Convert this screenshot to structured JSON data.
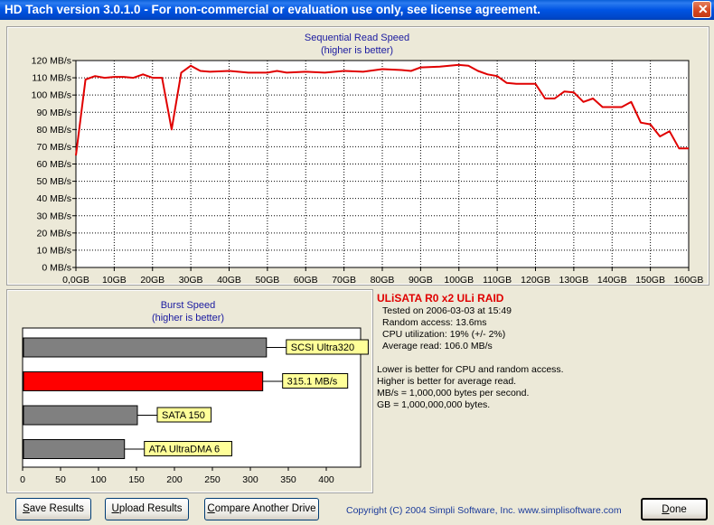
{
  "window": {
    "title": "HD Tach version 3.0.1.0  - For non-commercial or evaluation use only, see license agreement.",
    "close_glyph": "✕"
  },
  "chart_data": [
    {
      "type": "line",
      "title": "Sequential Read Speed",
      "subtitle": "(higher is better)",
      "xlabel": "",
      "ylabel": "",
      "x_ticks": [
        "0,0GB",
        "10GB",
        "20GB",
        "30GB",
        "40GB",
        "50GB",
        "60GB",
        "70GB",
        "80GB",
        "90GB",
        "100GB",
        "110GB",
        "120GB",
        "130GB",
        "140GB",
        "150GB",
        "160GB"
      ],
      "y_ticks": [
        "0 MB/s",
        "10 MB/s",
        "20 MB/s",
        "30 MB/s",
        "40 MB/s",
        "50 MB/s",
        "60 MB/s",
        "70 MB/s",
        "80 MB/s",
        "90 MB/s",
        "100 MB/s",
        "110 MB/s",
        "120 MB/s"
      ],
      "xlim": [
        0,
        160
      ],
      "ylim": [
        0,
        120
      ],
      "grid": true,
      "series": [
        {
          "color": "#e00000",
          "points": [
            [
              0,
              65
            ],
            [
              2.5,
              109
            ],
            [
              5,
              111
            ],
            [
              7.5,
              110
            ],
            [
              10,
              110.5
            ],
            [
              12.5,
              110.5
            ],
            [
              15,
              110
            ],
            [
              17.5,
              112
            ],
            [
              20,
              110
            ],
            [
              22.5,
              110
            ],
            [
              25,
              80
            ],
            [
              27.5,
              113
            ],
            [
              30,
              117
            ],
            [
              32.5,
              114
            ],
            [
              35,
              113.5
            ],
            [
              40,
              114
            ],
            [
              45,
              113
            ],
            [
              50,
              113
            ],
            [
              52.5,
              114
            ],
            [
              55,
              113
            ],
            [
              60,
              113.5
            ],
            [
              65,
              113
            ],
            [
              70,
              114
            ],
            [
              75,
              113.5
            ],
            [
              80,
              115
            ],
            [
              85,
              114.5
            ],
            [
              87.5,
              114
            ],
            [
              90,
              116
            ],
            [
              95,
              116.5
            ],
            [
              100,
              117.5
            ],
            [
              102.5,
              117
            ],
            [
              105,
              114
            ],
            [
              107.5,
              112
            ],
            [
              110,
              111
            ],
            [
              112.5,
              107
            ],
            [
              115,
              106.5
            ],
            [
              120,
              106.5
            ],
            [
              122.5,
              98
            ],
            [
              125,
              98
            ],
            [
              127.5,
              102
            ],
            [
              130,
              101.5
            ],
            [
              132.5,
              96
            ],
            [
              135,
              98
            ],
            [
              137.5,
              93
            ],
            [
              140,
              93
            ],
            [
              142.5,
              93
            ],
            [
              145,
              96
            ],
            [
              147.5,
              84
            ],
            [
              150,
              83
            ],
            [
              152.5,
              76
            ],
            [
              155,
              79
            ],
            [
              157.5,
              69
            ],
            [
              160,
              69
            ]
          ]
        }
      ]
    },
    {
      "type": "bar",
      "orientation": "horizontal",
      "title": "Burst Speed",
      "subtitle": "(higher is better)",
      "xlim": [
        0,
        450
      ],
      "x_ticks": [
        "0",
        "50",
        "100",
        "150",
        "200",
        "250",
        "300",
        "350",
        "400"
      ],
      "categories": [
        "SCSI Ultra320",
        "315.1 MB/s",
        "SATA 150",
        "ATA UltraDMA 6"
      ],
      "values": [
        320,
        315.1,
        150,
        133
      ],
      "colors": [
        "#808080",
        "#ff0000",
        "#808080",
        "#808080"
      ],
      "label_bg": "#ffff99"
    }
  ],
  "info": {
    "drive_name": "ULiSATA R0 x2 ULi RAID",
    "tested_on": "Tested on 2006-03-03 at 15:49",
    "random_access": "Random access: 13.6ms",
    "cpu": "CPU utilization: 19% (+/- 2%)",
    "average_read": "Average read: 106.0 MB/s",
    "note1": "Lower is better for CPU and random access.",
    "note2": "Higher is better for average read.",
    "note3": "MB/s = 1,000,000 bytes per second.",
    "note4": "GB = 1,000,000,000 bytes."
  },
  "buttons": {
    "save": {
      "mnemonic": "S",
      "rest": "ave Results"
    },
    "upload": {
      "mnemonic": "U",
      "rest": "pload Results"
    },
    "compare": {
      "mnemonic": "C",
      "rest": "ompare Another Drive"
    },
    "done": {
      "mnemonic": "D",
      "rest": "one"
    }
  },
  "copyright": "Copyright (C) 2004 Simpli Software, Inc. www.simplisoftware.com"
}
